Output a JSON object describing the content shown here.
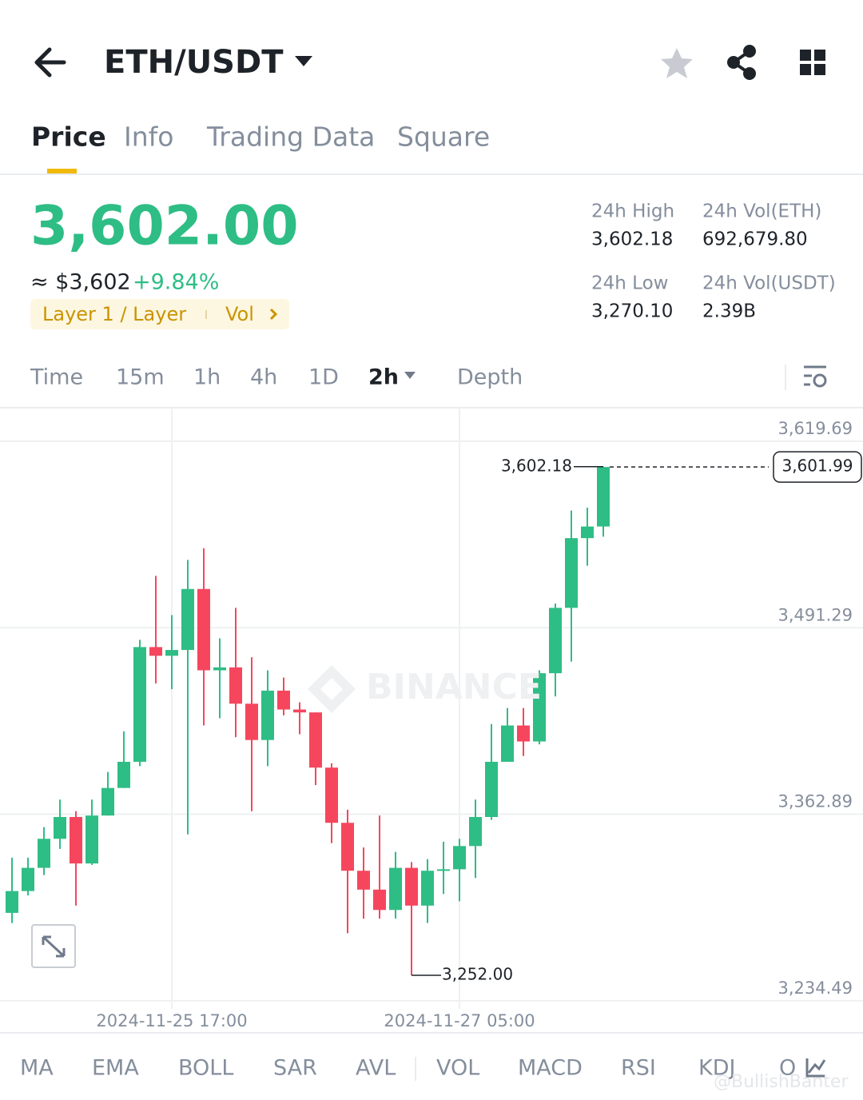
{
  "header": {
    "pair": "ETH/USDT"
  },
  "tabs": [
    "Price",
    "Info",
    "Trading Data",
    "Square"
  ],
  "price": {
    "last": "3,602.00",
    "usd": "≈ $3,602",
    "change": "+9.84%",
    "tags": [
      "Layer 1 / Layer",
      "Vol"
    ]
  },
  "stats": [
    {
      "label": "24h High",
      "value": "3,602.18"
    },
    {
      "label": "24h Vol(ETH)",
      "value": "692,679.80"
    },
    {
      "label": "24h Low",
      "value": "3,270.10"
    },
    {
      "label": "24h Vol(USDT)",
      "value": "2.39B"
    }
  ],
  "intervals": [
    "Time",
    "15m",
    "1h",
    "4h",
    "1D",
    "2h",
    "Depth"
  ],
  "chart_data": {
    "type": "candlestick",
    "categories": [
      null,
      null,
      null,
      null,
      null,
      null,
      null,
      null,
      null,
      null,
      "2024-11-25 17:00",
      null,
      null,
      null,
      null,
      null,
      null,
      null,
      null,
      null,
      null,
      null,
      null,
      null,
      null,
      null,
      null,
      null,
      "2024-11-27 05:00",
      null,
      null,
      null,
      null,
      null,
      null,
      null,
      null,
      null
    ],
    "open": [
      3295,
      3310,
      3326,
      3346,
      3361,
      3329,
      3362,
      3381,
      3399,
      3478,
      3472,
      3476,
      3518,
      3462,
      3464,
      3439,
      3414,
      3448,
      3435,
      3433,
      3395,
      3357,
      3324,
      3311,
      3297,
      3326,
      3300,
      3324,
      3325,
      3341,
      3361,
      3399,
      3424,
      3413,
      3460,
      3505,
      3553,
      3561
    ],
    "high": [
      3333,
      3333,
      3354,
      3373,
      3365,
      3373,
      3392,
      3420,
      3483,
      3527,
      3500,
      3538,
      3546,
      3484,
      3505,
      3471,
      3462,
      3457,
      3440,
      3433,
      3398,
      3366,
      3340,
      3362,
      3337,
      3330,
      3332,
      3344,
      3346,
      3373,
      3425,
      3436,
      3436,
      3462,
      3508,
      3572,
      3574,
      3602.18
    ],
    "low": [
      3288,
      3307,
      3321,
      3339,
      3300,
      3328,
      3362,
      3381,
      3396,
      3453,
      3449,
      3349,
      3424,
      3429,
      3416,
      3365,
      3396,
      3431,
      3418,
      3383,
      3343,
      3281,
      3291,
      3291,
      3291,
      3252,
      3288,
      3308,
      3303,
      3319,
      3359,
      3399,
      3403,
      3411,
      3444,
      3468,
      3534,
      3554
    ],
    "close": [
      3310,
      3326,
      3346,
      3361,
      3329,
      3362,
      3381,
      3399,
      3478,
      3472,
      3476,
      3518,
      3462,
      3464,
      3439,
      3414,
      3448,
      3435,
      3433,
      3395,
      3357,
      3324,
      3311,
      3297,
      3326,
      3300,
      3324,
      3325,
      3341,
      3361,
      3399,
      3424,
      3413,
      3460,
      3505,
      3553,
      3561,
      3601.99
    ],
    "up_color": "#2ebd85",
    "down_color": "#f6465d",
    "ylim": [
      3228.9,
      3642.8
    ],
    "yticks": [
      {
        "value": 3234.49,
        "label": "3,234.49"
      },
      {
        "value": 3362.89,
        "label": "3,362.89"
      },
      {
        "value": 3491.29,
        "label": "3,491.29"
      },
      {
        "value": 3619.69,
        "label": "3,619.69"
      }
    ],
    "grid": true,
    "max_label": {
      "value": 3602.18,
      "label": "3,602.18"
    },
    "min_label": {
      "value": 3252,
      "label": "3,252.00"
    },
    "last_price": {
      "value": 3601.99,
      "label": "3,601.99"
    }
  },
  "indicators": [
    "MA",
    "EMA",
    "BOLL",
    "SAR",
    "AVL",
    "VOL",
    "MACD",
    "RSI",
    "KDJ",
    "O"
  ],
  "watermarks": [
    "BINANCE",
    "@BullishBanter"
  ]
}
